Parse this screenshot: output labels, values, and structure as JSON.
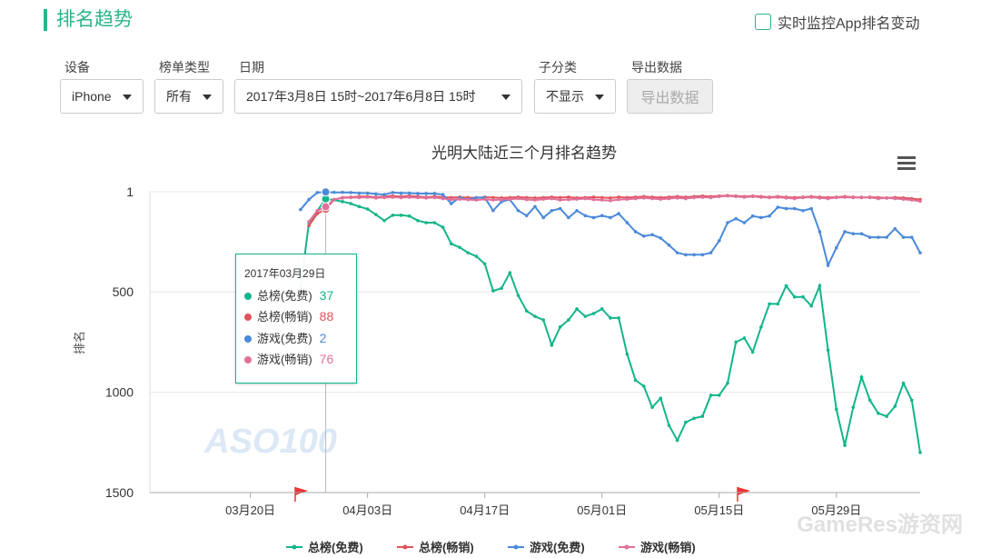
{
  "header": {
    "title": "排名趋势",
    "monitor": "实时监控App排名变动"
  },
  "filters": [
    {
      "label": "设备",
      "value": "iPhone"
    },
    {
      "label": "榜单类型",
      "value": "所有"
    },
    {
      "label": "日期",
      "value": "2017年3月8日 15时~2017年6月8日 15时"
    },
    {
      "label": "子分类",
      "value": "不显示"
    },
    {
      "label": "导出数据",
      "value": "导出数据"
    }
  ],
  "chart_data": {
    "type": "line",
    "title": "光明大陆近三个月排名趋势",
    "y_label": "排名",
    "x": [
      "2017-03-26",
      "2017-03-27",
      "2017-03-28",
      "2017-03-29",
      "2017-03-30",
      "2017-03-31",
      "2017-04-01",
      "2017-04-02",
      "2017-04-03",
      "2017-04-04",
      "2017-04-05",
      "2017-04-06",
      "2017-04-07",
      "2017-04-08",
      "2017-04-09",
      "2017-04-10",
      "2017-04-11",
      "2017-04-12",
      "2017-04-13",
      "2017-04-14",
      "2017-04-15",
      "2017-04-16",
      "2017-04-17",
      "2017-04-18",
      "2017-04-19",
      "2017-04-20",
      "2017-04-21",
      "2017-04-22",
      "2017-04-23",
      "2017-04-24",
      "2017-04-25",
      "2017-04-26",
      "2017-04-27",
      "2017-04-28",
      "2017-04-29",
      "2017-04-30",
      "2017-05-01",
      "2017-05-02",
      "2017-05-03",
      "2017-05-04",
      "2017-05-05",
      "2017-05-06",
      "2017-05-07",
      "2017-05-08",
      "2017-05-09",
      "2017-05-10",
      "2017-05-11",
      "2017-05-12",
      "2017-05-13",
      "2017-05-14",
      "2017-05-15",
      "2017-05-16",
      "2017-05-17",
      "2017-05-18",
      "2017-05-19",
      "2017-05-20",
      "2017-05-21",
      "2017-05-22",
      "2017-05-23",
      "2017-05-24",
      "2017-05-25",
      "2017-05-26",
      "2017-05-27",
      "2017-05-28",
      "2017-05-29",
      "2017-05-30",
      "2017-05-31",
      "2017-06-01",
      "2017-06-02",
      "2017-06-03",
      "2017-06-04",
      "2017-06-05",
      "2017-06-06",
      "2017-06-07",
      "2017-06-08"
    ],
    "series": [
      {
        "name": "总榜(免费)",
        "color": "#13b58a",
        "values": [
          480,
          155,
          96,
          37,
          42,
          50,
          60,
          75,
          87,
          115,
          145,
          118,
          118,
          122,
          145,
          155,
          155,
          178,
          260,
          278,
          305,
          323,
          360,
          495,
          482,
          405,
          518,
          595,
          622,
          640,
          765,
          675,
          640,
          585,
          622,
          608,
          585,
          630,
          630,
          810,
          940,
          970,
          1075,
          1030,
          1165,
          1240,
          1150,
          1130,
          1120,
          1015,
          1015,
          955,
          750,
          730,
          800,
          675,
          560,
          560,
          470,
          525,
          525,
          570,
          470,
          790,
          1085,
          1265,
          1075,
          925,
          1040,
          1105,
          1120,
          1070,
          955,
          1040,
          1300
        ]
      },
      {
        "name": "总榜(畅销)",
        "color": "#e0545b",
        "values": [
          null,
          170,
          110,
          88,
          40,
          30,
          28,
          25,
          25,
          28,
          25,
          22,
          25,
          22,
          25,
          28,
          25,
          28,
          30,
          28,
          30,
          32,
          28,
          30,
          32,
          30,
          28,
          30,
          32,
          30,
          28,
          30,
          28,
          32,
          30,
          28,
          30,
          32,
          28,
          30,
          28,
          25,
          28,
          30,
          28,
          25,
          28,
          25,
          22,
          25,
          22,
          20,
          22,
          25,
          22,
          25,
          28,
          25,
          28,
          30,
          28,
          25,
          28,
          30,
          28,
          25,
          28,
          30,
          28,
          30,
          32,
          30,
          32,
          35,
          40
        ]
      },
      {
        "name": "游戏(免费)",
        "color": "#4a8ad8",
        "values": [
          90,
          40,
          5,
          2,
          4,
          4,
          5,
          8,
          8,
          12,
          15,
          5,
          8,
          8,
          10,
          10,
          10,
          15,
          60,
          30,
          40,
          30,
          30,
          95,
          50,
          40,
          95,
          120,
          75,
          130,
          95,
          85,
          130,
          95,
          120,
          130,
          120,
          130,
          110,
          155,
          200,
          222,
          215,
          232,
          267,
          305,
          315,
          315,
          315,
          305,
          245,
          155,
          135,
          155,
          122,
          130,
          122,
          78,
          85,
          85,
          95,
          85,
          200,
          367,
          280,
          200,
          210,
          210,
          228,
          228,
          228,
          185,
          228,
          228,
          305
        ]
      },
      {
        "name": "游戏(畅销)",
        "color": "#e0709a",
        "values": [
          null,
          150,
          95,
          76,
          40,
          32,
          30,
          30,
          28,
          32,
          30,
          28,
          30,
          28,
          30,
          32,
          30,
          35,
          40,
          38,
          40,
          42,
          38,
          42,
          40,
          38,
          35,
          40,
          42,
          38,
          35,
          42,
          40,
          38,
          35,
          40,
          42,
          45,
          40,
          38,
          35,
          32,
          35,
          38,
          35,
          32,
          35,
          30,
          28,
          30,
          25,
          22,
          25,
          28,
          25,
          28,
          30,
          28,
          32,
          35,
          30,
          28,
          32,
          35,
          30,
          28,
          30,
          28,
          30,
          35,
          32,
          35,
          38,
          42,
          48
        ]
      }
    ],
    "xlim": [
      "2017-03-08",
      "2017-06-08"
    ],
    "xticks": [
      {
        "value": "2017-03-20",
        "label": "03月20日"
      },
      {
        "value": "2017-04-03",
        "label": "04月03日"
      },
      {
        "value": "2017-04-17",
        "label": "04月17日"
      },
      {
        "value": "2017-05-01",
        "label": "05月01日"
      },
      {
        "value": "2017-05-15",
        "label": "05月15日"
      },
      {
        "value": "2017-05-29",
        "label": "05月29日"
      }
    ],
    "ylim": [
      1,
      1500
    ],
    "y_reversed": true,
    "yticks": [
      1,
      500,
      1000,
      1500
    ],
    "grid": true,
    "tooltip": {
      "title": "2017年03月29日"
    },
    "watermark": "ASO100"
  },
  "site_watermark": "GameRes游资网"
}
